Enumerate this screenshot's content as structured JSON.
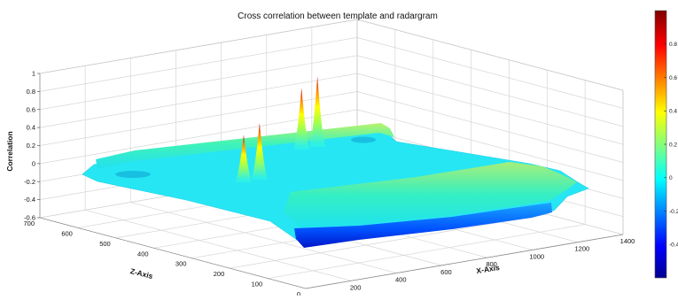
{
  "chart_data": {
    "type": "surface",
    "title": "Cross correlation between template and radargram",
    "xlabel": "X-Axis",
    "ylabel": "Z-Axis",
    "zlabel": "Correlation",
    "grid": true,
    "colormap": "jet",
    "colorbar_position": "right",
    "x_ticks": [
      200,
      400,
      600,
      800,
      1000,
      1200,
      1400
    ],
    "y_ticks": [
      0,
      100,
      200,
      300,
      400,
      500,
      600,
      700
    ],
    "z_ticks": [
      -0.6,
      -0.4,
      -0.2,
      0,
      0.2,
      0.4,
      0.6,
      0.8,
      1
    ],
    "xlim": [
      0,
      1400
    ],
    "ylim": [
      0,
      700
    ],
    "zlim": [
      -0.6,
      1
    ],
    "surface": {
      "baseline_correlation": -0.05,
      "peaks": [
        {
          "x": 430,
          "z": 420,
          "correlation": 0.45
        },
        {
          "x": 500,
          "z": 420,
          "correlation": 0.55
        },
        {
          "x": 920,
          "z": 560,
          "correlation": 0.6
        },
        {
          "x": 990,
          "z": 560,
          "correlation": 0.7
        }
      ],
      "ridges": [
        {
          "z_range": [
            600,
            640
          ],
          "correlation": 0.05
        },
        {
          "z_range": [
            330,
            360
          ],
          "correlation": 0.1
        }
      ],
      "minimum_correlation": -0.55
    },
    "colorbar_ticks": [
      -0.4,
      -0.2,
      0,
      0.2,
      0.4,
      0.6,
      0.8
    ]
  }
}
